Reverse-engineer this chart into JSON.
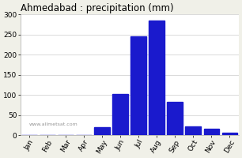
{
  "title": "Ahmedabad : precipitation (mm)",
  "months": [
    "Jan",
    "Feb",
    "Mar",
    "Apr",
    "May",
    "Jun",
    "Jul",
    "Aug",
    "Sep",
    "Oct",
    "Nov",
    "Dec"
  ],
  "values": [
    0,
    0,
    0,
    0,
    20,
    103,
    245,
    285,
    83,
    22,
    15,
    5
  ],
  "bar_color": "#1a1acd",
  "ylim": [
    0,
    300
  ],
  "yticks": [
    0,
    50,
    100,
    150,
    200,
    250,
    300
  ],
  "background_color": "#f0f0e8",
  "plot_bg_color": "#ffffff",
  "title_fontsize": 8.5,
  "tick_fontsize": 6.5,
  "watermark": "www.allmetsat.com",
  "watermark_fontsize": 4.5
}
